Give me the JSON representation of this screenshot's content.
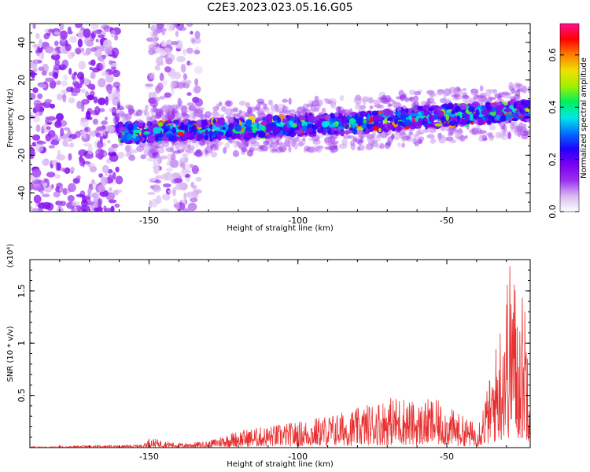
{
  "figure": {
    "title": "C2E3.2023.023.05.16.G05"
  },
  "chart_data": [
    {
      "type": "heatmap",
      "title": "C2E3.2023.023.05.16.G05",
      "xlabel": "Height of straight line (km)",
      "ylabel": "Frequency (Hz)",
      "colorbar_label": "Normalized spectral amplitude",
      "xlim": [
        -190,
        -22
      ],
      "ylim": [
        -50,
        50
      ],
      "clim": [
        0.0,
        0.72
      ],
      "x_ticks": [
        -150,
        -100,
        -50
      ],
      "y_ticks": [
        -40,
        -20,
        0,
        20,
        40
      ],
      "colorbar_ticks": [
        0.0,
        0.2,
        0.4,
        0.6
      ],
      "colormap": [
        "#ffffff",
        "#d8b8f0",
        "#9a30f0",
        "#7a00f0",
        "#2000ff",
        "#0070ff",
        "#00e8e8",
        "#00f060",
        "#a0f000",
        "#f0e000",
        "#ff8000",
        "#ff0000",
        "#ff1090"
      ],
      "signal_band": {
        "x_range": [
          -160,
          -22
        ],
        "center_frequency_hz": [
          [
            -160,
            -8
          ],
          [
            -140,
            -7
          ],
          [
            -120,
            -6
          ],
          [
            -100,
            -4
          ],
          [
            -80,
            -3
          ],
          [
            -60,
            0
          ],
          [
            -40,
            2
          ],
          [
            -22,
            4
          ]
        ],
        "band_half_width_hz": 5,
        "peak_amplitude": 0.7
      },
      "noise_regions": [
        {
          "x_range": [
            -190,
            -160
          ],
          "amplitude": 0.12
        },
        {
          "x_range": [
            -150,
            -133
          ],
          "amplitude": 0.08
        }
      ]
    },
    {
      "type": "line",
      "xlabel": "Height of straight line (km)",
      "ylabel": "SNR (10 * v/v)",
      "y_multiplier": "(x10⁴)",
      "xlim": [
        -190,
        -22
      ],
      "ylim": [
        0,
        1.8
      ],
      "x_ticks": [
        -150,
        -100,
        -50
      ],
      "y_ticks": [
        0.5,
        1.0,
        1.5
      ],
      "color": "#e83030",
      "series": [
        {
          "x": [
            -190,
            -180,
            -170,
            -160,
            -152,
            -150,
            -140,
            -130,
            -125,
            -120,
            -110,
            -100,
            -90,
            -80,
            -75,
            -70,
            -65,
            -60,
            -55,
            -50,
            -45,
            -40,
            -38,
            -35,
            -32,
            -30,
            -28,
            -26,
            -24,
            -22
          ],
          "y": [
            0.01,
            0.01,
            0.02,
            0.02,
            0.03,
            0.09,
            0.04,
            0.06,
            0.12,
            0.16,
            0.2,
            0.24,
            0.3,
            0.36,
            0.42,
            0.46,
            0.48,
            0.4,
            0.46,
            0.38,
            0.3,
            0.22,
            0.4,
            0.7,
            1.2,
            1.6,
            1.8,
            1.3,
            1.5,
            1.1
          ]
        }
      ]
    }
  ]
}
